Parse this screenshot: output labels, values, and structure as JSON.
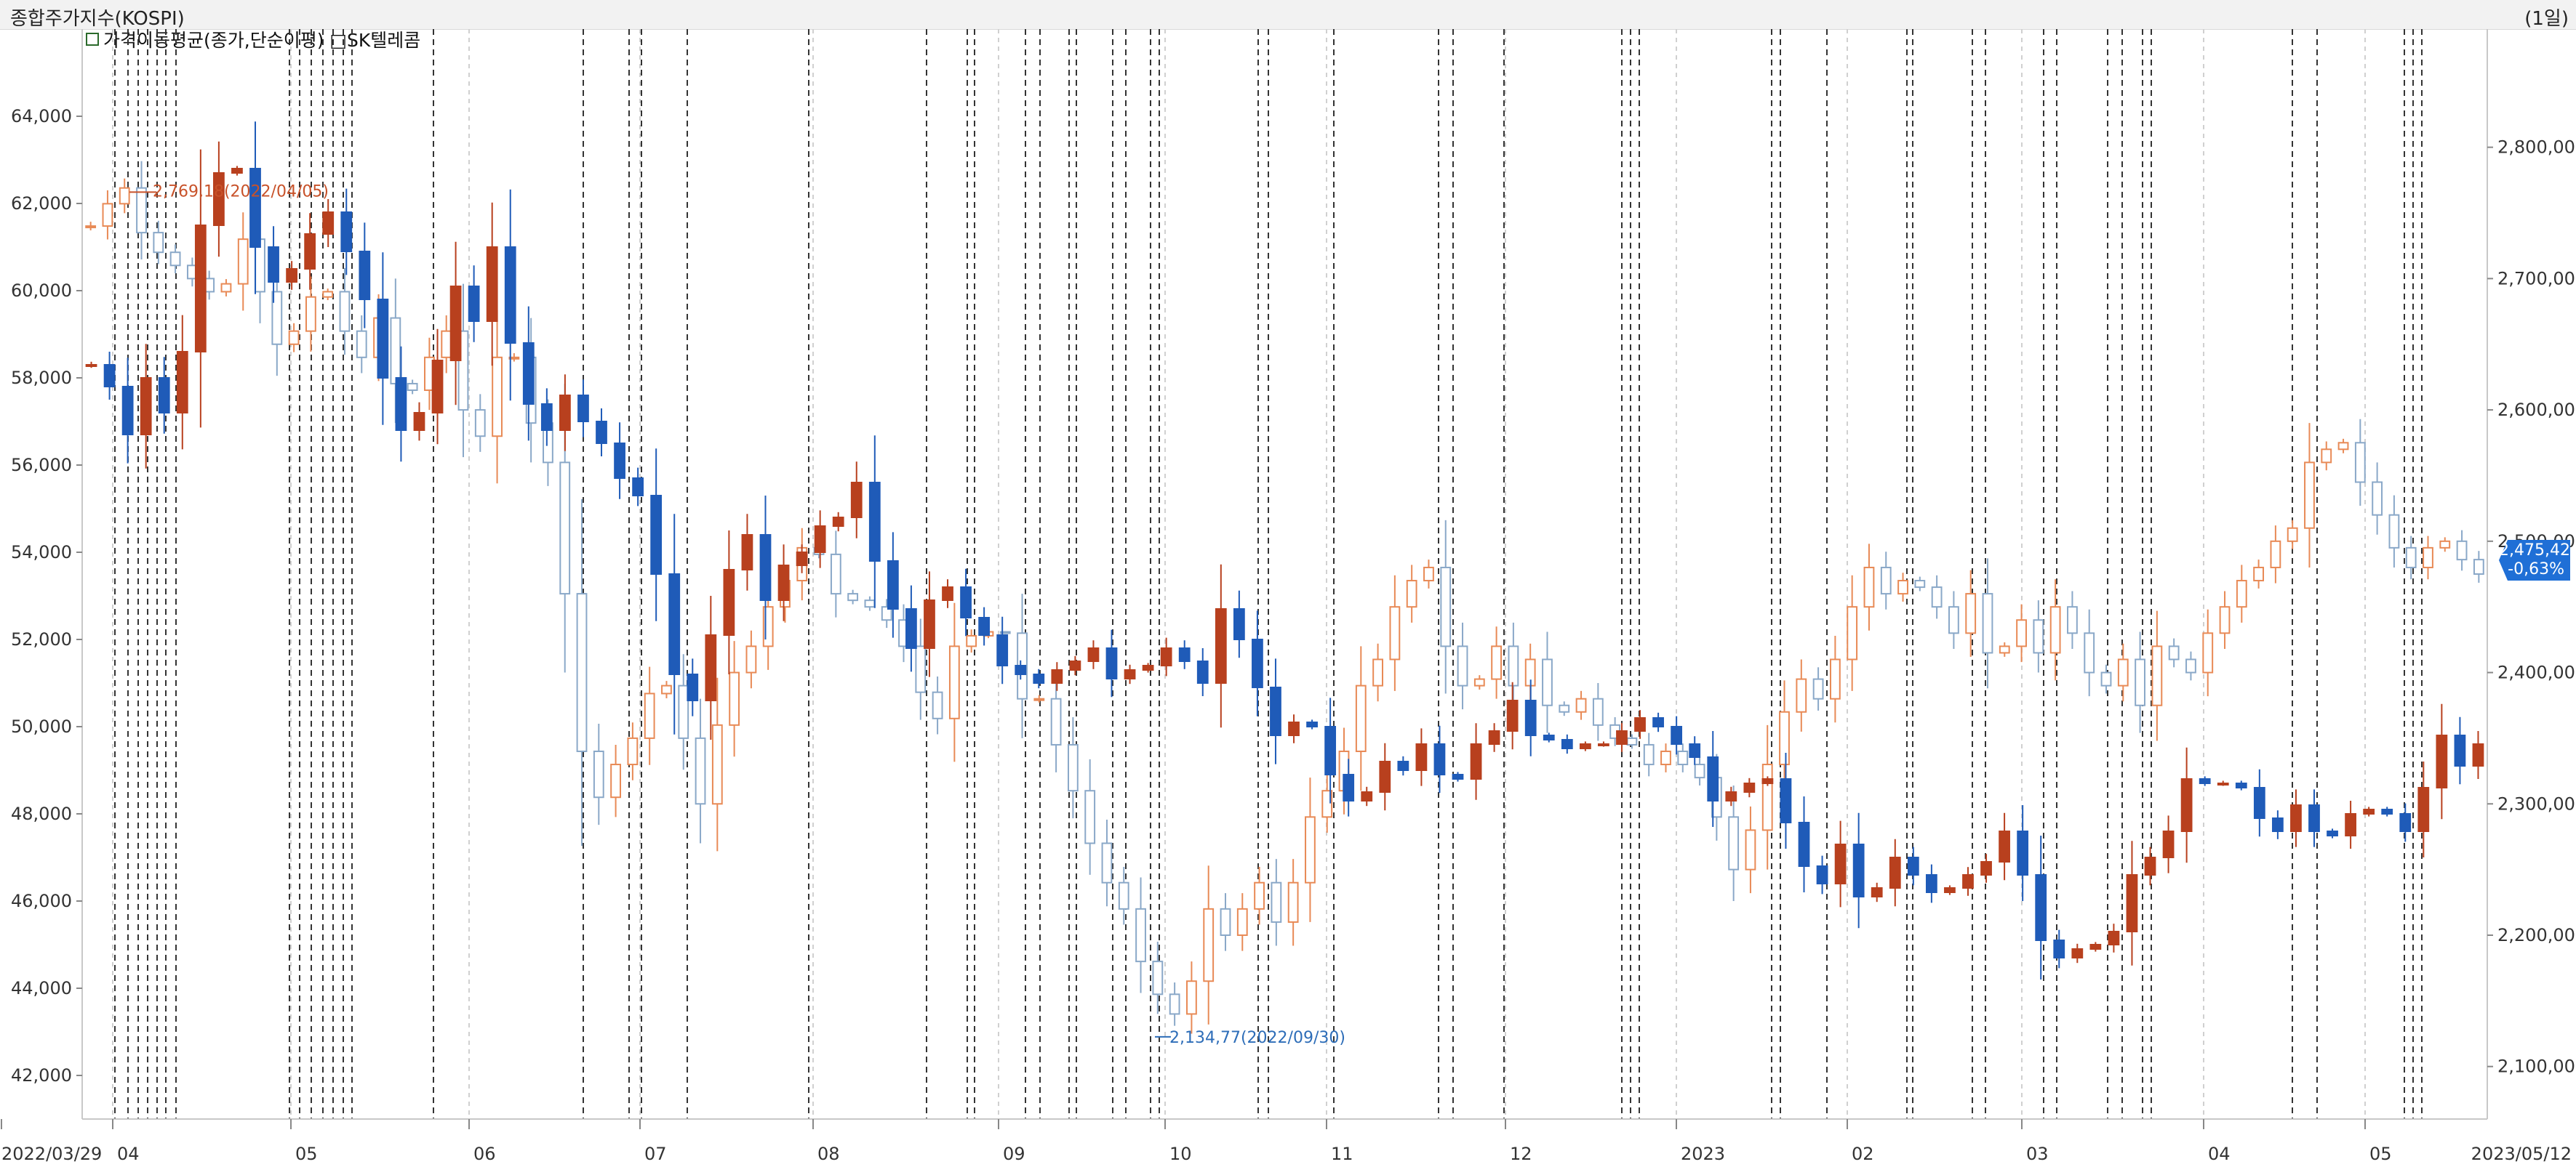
{
  "header": {
    "title": "종합주가지수(KOSPI)",
    "period": "(1일)",
    "legend": "가격이동평균(종가,단순이평) □SK텔레콤"
  },
  "chart_data": {
    "type": "candlestick",
    "x_start_label": "2022/03/29",
    "x_end_label": "2023/05/12",
    "x_ticks": [
      "04",
      "05",
      "06",
      "07",
      "08",
      "09",
      "10",
      "11",
      "12",
      "2023",
      "02",
      "03",
      "04",
      "05"
    ],
    "left_axis": {
      "series": "SK텔레콤",
      "ticks": [
        "64,000",
        "62,000",
        "60,000",
        "58,000",
        "56,000",
        "54,000",
        "52,000",
        "50,000",
        "48,000",
        "46,000",
        "44,000",
        "42,000"
      ],
      "range": [
        41000,
        66000
      ]
    },
    "right_axis": {
      "series": "종합주가지수(KOSPI)",
      "ticks": [
        "2,800,00",
        "2,700,00",
        "2,600,00",
        "2,500,00",
        "2,400,00",
        "2,300,00",
        "2,200,00",
        "2,100,00"
      ],
      "range": [
        2060,
        2890
      ]
    },
    "annotations": {
      "high": "2,769,18(2022/04/05)",
      "low": "2,134,77(2022/09/30)"
    },
    "last_value": {
      "price": "2,475,42",
      "change": "-0,63%"
    },
    "skt_close_path": [
      58300,
      57800,
      56700,
      58000,
      57200,
      58600,
      61500,
      62700,
      62800,
      61000,
      60200,
      60500,
      61300,
      61800,
      60900,
      59800,
      58000,
      56800,
      57200,
      58400,
      60100,
      59300,
      61000,
      58800,
      57400,
      56800,
      57600,
      57000,
      56500,
      55700,
      55300,
      53500,
      51200,
      50600,
      52100,
      53600,
      54400,
      52900,
      53700,
      54000,
      54600,
      54800,
      55600,
      53800,
      52700,
      51800,
      52900,
      53200,
      52500,
      52100,
      51400,
      51200,
      51000,
      51300,
      51500,
      51800,
      51100,
      51300,
      51400,
      51800,
      51500,
      51000,
      52700,
      52000,
      50900,
      49800,
      50100,
      50000,
      48900,
      48300,
      48500,
      49200,
      49000,
      49600,
      48900,
      48800,
      49600,
      49900,
      50600,
      49800,
      49700,
      49500,
      49600,
      49600,
      49900,
      50200,
      50000,
      49600,
      49300,
      48300,
      48500,
      48700,
      48800,
      47800,
      46800,
      46400,
      47300,
      46100,
      46300,
      47000,
      46600,
      46200,
      46300,
      46600,
      46900,
      47600,
      46600,
      45100,
      44700,
      44900,
      45000,
      45300,
      46600,
      47000,
      47600,
      48800,
      48700,
      48700,
      48600,
      47900,
      47600,
      48200,
      47600,
      47500,
      48000,
      48100,
      48000,
      47600,
      48600,
      49800,
      49100,
      49600
    ],
    "kospi_close_path": [
      2740,
      2757,
      2769,
      2735,
      2720,
      2710,
      2700,
      2690,
      2696,
      2730,
      2690,
      2650,
      2660,
      2686,
      2690,
      2660,
      2640,
      2670,
      2620,
      2615,
      2640,
      2660,
      2600,
      2580,
      2640,
      2640,
      2590,
      2560,
      2460,
      2340,
      2305,
      2330,
      2350,
      2384,
      2390,
      2350,
      2300,
      2360,
      2400,
      2420,
      2450,
      2470,
      2495,
      2490,
      2460,
      2455,
      2450,
      2440,
      2420,
      2385,
      2365,
      2420,
      2428,
      2431,
      2430,
      2380,
      2380,
      2345,
      2310,
      2270,
      2240,
      2220,
      2180,
      2155,
      2140,
      2165,
      2220,
      2200,
      2220,
      2240,
      2210,
      2240,
      2290,
      2310,
      2340,
      2390,
      2410,
      2450,
      2470,
      2480,
      2420,
      2390,
      2395,
      2420,
      2390,
      2410,
      2375,
      2370,
      2380,
      2360,
      2350,
      2345,
      2330,
      2340,
      2330,
      2320,
      2290,
      2250,
      2280,
      2330,
      2370,
      2395,
      2380,
      2410,
      2450,
      2480,
      2460,
      2470,
      2465,
      2450,
      2430,
      2460,
      2415,
      2420,
      2440,
      2415,
      2450,
      2430,
      2400,
      2390,
      2410,
      2375,
      2420,
      2410,
      2400,
      2430,
      2450,
      2470,
      2480,
      2500,
      2510,
      2560,
      2570,
      2575,
      2545,
      2520,
      2495,
      2480,
      2495,
      2500,
      2486,
      2475
    ]
  }
}
